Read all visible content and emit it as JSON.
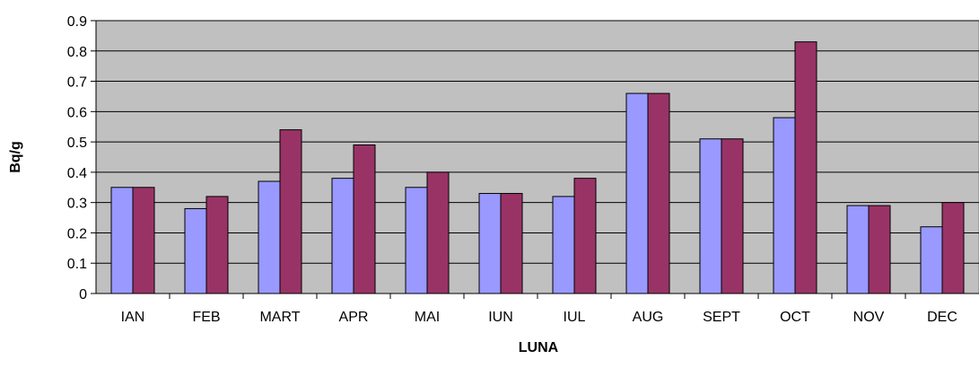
{
  "chart_data": {
    "type": "bar",
    "title": "",
    "xlabel": "LUNA",
    "ylabel": "Bq/g",
    "ylim": [
      0,
      0.9
    ],
    "yticks": [
      "0",
      "0.1",
      "0.2",
      "0.3",
      "0.4",
      "0.5",
      "0.6",
      "0.7",
      "0.8",
      "0.9"
    ],
    "categories": [
      "IAN",
      "FEB",
      "MART",
      "APR",
      "MAI",
      "IUN",
      "IUL",
      "AUG",
      "SEPT",
      "OCT",
      "NOV",
      "DEC"
    ],
    "grid": true,
    "legend": "none",
    "series": [
      {
        "color": "#9999ff",
        "values": [
          0.35,
          0.28,
          0.37,
          0.38,
          0.35,
          0.33,
          0.32,
          0.66,
          0.51,
          0.58,
          0.29,
          0.22
        ]
      },
      {
        "color": "#993366",
        "values": [
          0.35,
          0.32,
          0.54,
          0.49,
          0.4,
          0.33,
          0.38,
          0.66,
          0.51,
          0.83,
          0.29,
          0.3
        ]
      }
    ],
    "plot_background": "#c0c0c0"
  }
}
